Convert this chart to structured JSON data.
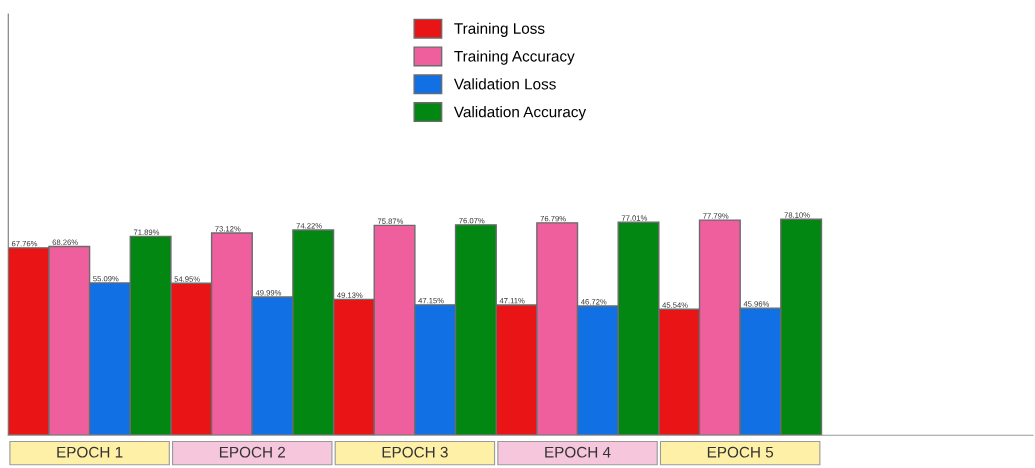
{
  "chart_data": {
    "type": "bar",
    "categories": [
      "EPOCH 1",
      "EPOCH 2",
      "EPOCH 3",
      "EPOCH 4",
      "EPOCH 5"
    ],
    "series": [
      {
        "name": "Training Loss",
        "color": "#e81416",
        "values": [
          67.76,
          54.95,
          49.13,
          47.11,
          45.54
        ],
        "value_labels": [
          "67.76%",
          "54.95%",
          "49.13%",
          "47.11%",
          "45.54%"
        ]
      },
      {
        "name": "Training Accuracy",
        "color": "#ef5f9e",
        "values": [
          68.26,
          73.12,
          75.87,
          76.79,
          77.79
        ],
        "value_labels": [
          "68.26%",
          "73.12%",
          "75.87%",
          "76.79%",
          "77.79%"
        ]
      },
      {
        "name": "Validation Loss",
        "color": "#1170e4",
        "values": [
          55.09,
          49.99,
          47.15,
          46.72,
          45.96
        ],
        "value_labels": [
          "55.09%",
          "49.99%",
          "47.15%",
          "46.72%",
          "45.96%"
        ]
      },
      {
        "name": "Validation Accuracy",
        "color": "#028812",
        "values": [
          71.89,
          74.22,
          76.07,
          77.01,
          78.1
        ],
        "value_labels": [
          "71.89%",
          "74.22%",
          "76.07%",
          "77.01%",
          "78.10%"
        ]
      }
    ],
    "legend": "top",
    "grid": false
  }
}
